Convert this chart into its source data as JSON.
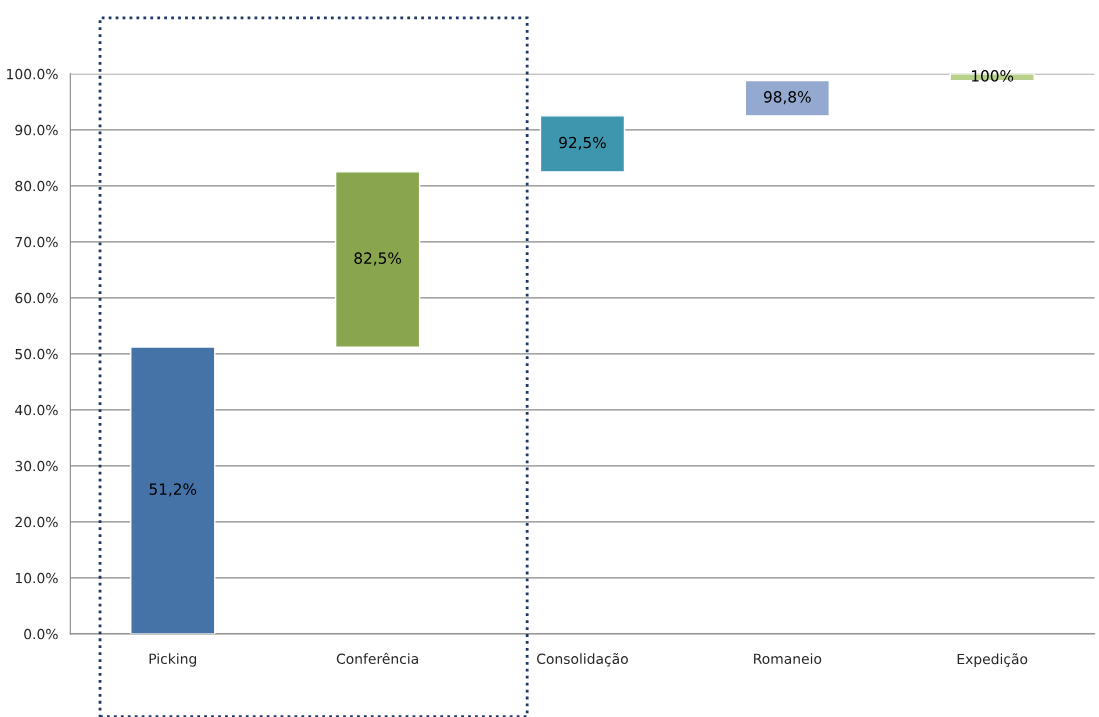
{
  "chart_data": {
    "type": "bar",
    "categories": [
      "Picking",
      "Conferência",
      "Consolidação",
      "Romaneio",
      "Expedição"
    ],
    "base": [
      0,
      51.2,
      82.5,
      92.5,
      98.8
    ],
    "values": [
      51.2,
      31.3,
      10.0,
      6.3,
      1.2
    ],
    "colors": [
      "#4572a7",
      "#89a54e",
      "#3d96ae",
      "#93a9cf",
      "#b9d08a"
    ],
    "value_labels": [
      "51,2%",
      "82,5%",
      "92,5%",
      "98,8%",
      "100%"
    ],
    "ylim": [
      0,
      100
    ],
    "yticks": [
      {
        "value": 0,
        "label": "0.0%"
      },
      {
        "value": 10,
        "label": "10.0%"
      },
      {
        "value": 20,
        "label": "20.0%"
      },
      {
        "value": 30,
        "label": "30.0%"
      },
      {
        "value": 40,
        "label": "40.0%"
      },
      {
        "value": 50,
        "label": "50.0%"
      },
      {
        "value": 60,
        "label": "60.0%"
      },
      {
        "value": 70,
        "label": "70.0%"
      },
      {
        "value": 80,
        "label": "80.0%"
      },
      {
        "value": 90,
        "label": "90.0%"
      },
      {
        "value": 100,
        "label": "100.0%"
      }
    ],
    "grid": "y"
  }
}
